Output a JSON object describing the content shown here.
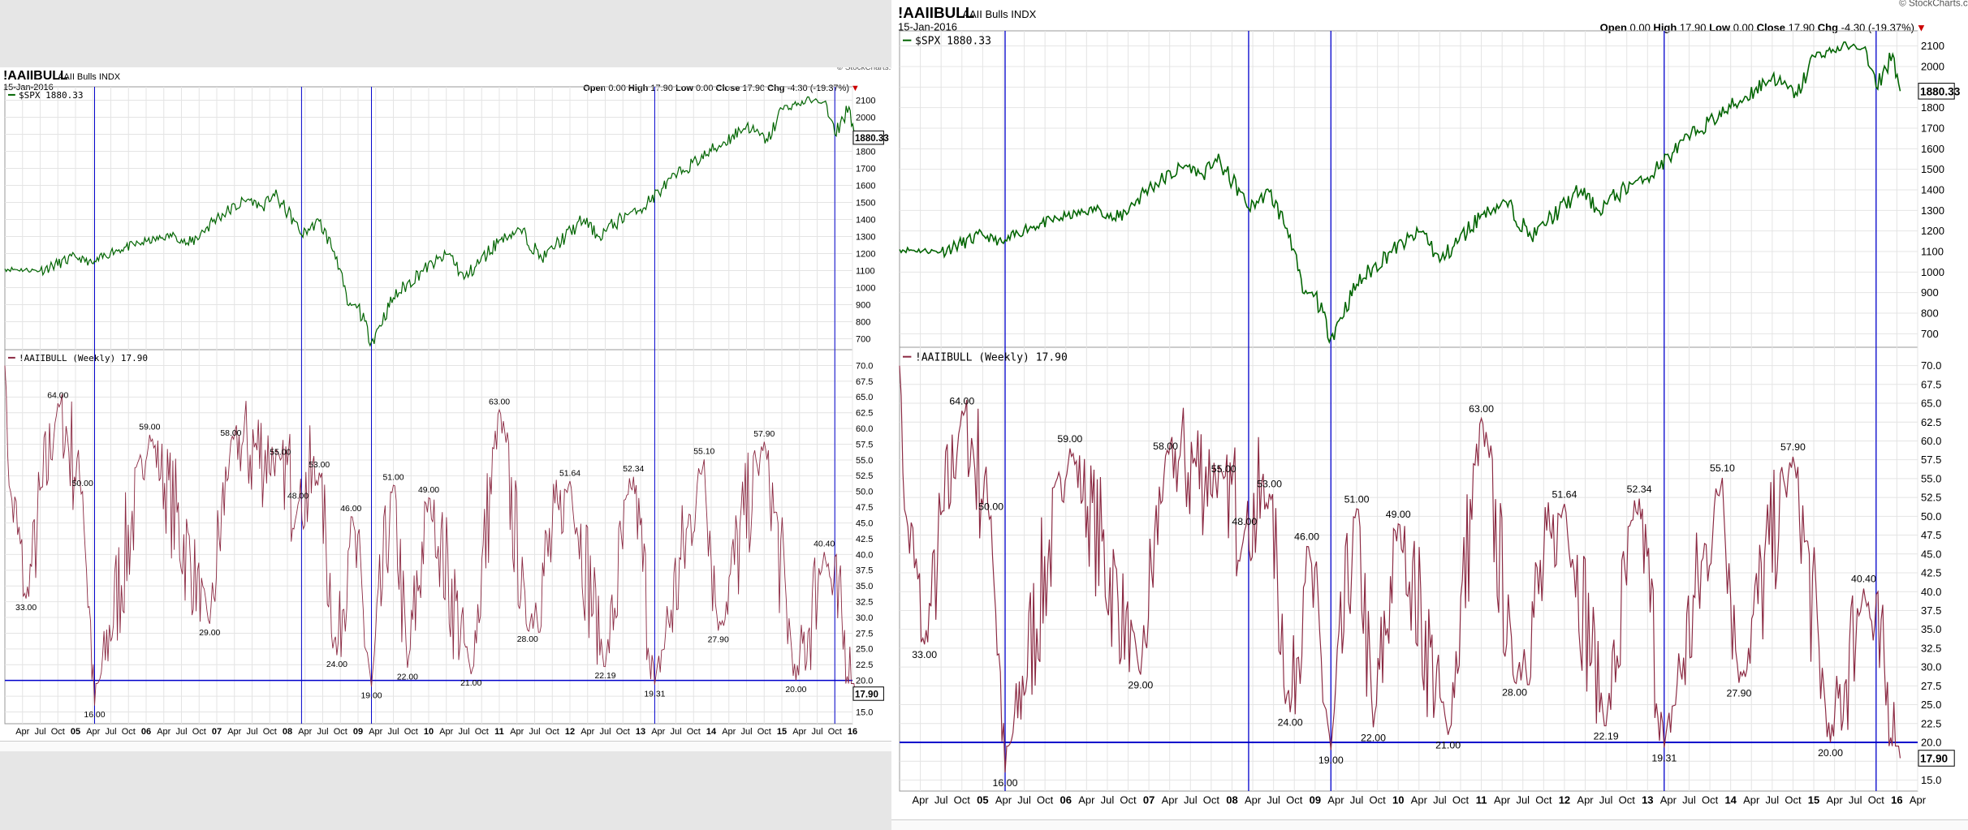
{
  "symbol": "!AAIIBULL",
  "name": "AAII Bulls",
  "exchange": "INDX",
  "date": "15-Jan-2016",
  "watermark": "© StockCharts.com",
  "ohlc": {
    "open_label": "Open",
    "open": "0.00",
    "high_label": "High",
    "high": "17.90",
    "low_label": "Low",
    "low": "0.00",
    "close_label": "Close",
    "close": "17.90",
    "chg_label": "Chg",
    "chg": "-4.30 (-19.37%)",
    "chg_marker": "▼"
  },
  "price_legend": "$SPX 1880.33",
  "price_tag": "1880.33",
  "bull_legend": "!AAIIBULL (Weekly) 17.90",
  "bull_tag": "17.90",
  "colors": {
    "price_line": "#006400",
    "bull_line": "#8b2942",
    "markers": "#0000cc",
    "down": "#cc0000"
  },
  "chart_data": [
    {
      "type": "line",
      "title": "$SPX 1880.33",
      "x_range": [
        "2004-01",
        "2016-01"
      ],
      "ylim": [
        650,
        2150
      ],
      "yticks": [
        700,
        800,
        900,
        1000,
        1100,
        1200,
        1300,
        1400,
        1500,
        1600,
        1700,
        1800,
        1900,
        2000,
        2100
      ],
      "x": [
        2004.0,
        2004.5,
        2005.0,
        2005.25,
        2005.5,
        2006.0,
        2006.4,
        2006.6,
        2007.0,
        2007.45,
        2007.65,
        2007.8,
        2008.1,
        2008.2,
        2008.45,
        2008.7,
        2008.85,
        2009.0,
        2009.19,
        2009.5,
        2009.9,
        2010.3,
        2010.5,
        2011.0,
        2011.3,
        2011.6,
        2011.8,
        2012.2,
        2012.4,
        2012.8,
        2013.0,
        2013.3,
        2013.6,
        2014.0,
        2014.5,
        2014.8,
        2015.0,
        2015.4,
        2015.6,
        2015.75,
        2015.95,
        2016.04
      ],
      "values": [
        1110,
        1100,
        1180,
        1140,
        1210,
        1270,
        1310,
        1250,
        1410,
        1520,
        1470,
        1550,
        1390,
        1310,
        1390,
        1180,
        900,
        890,
        683,
        940,
        1100,
        1200,
        1050,
        1280,
        1340,
        1170,
        1250,
        1400,
        1300,
        1430,
        1460,
        1580,
        1690,
        1800,
        1950,
        1860,
        2050,
        2100,
        2090,
        1900,
        2060,
        1880.33
      ]
    },
    {
      "type": "line",
      "title": "!AAIIBULL (Weekly) 17.90",
      "x_range": [
        "2004-01",
        "2016-01"
      ],
      "ylim": [
        13,
        72
      ],
      "yticks": [
        15.0,
        17.5,
        20.0,
        22.5,
        25.0,
        27.5,
        30.0,
        32.5,
        35.0,
        37.5,
        40.0,
        42.5,
        45.0,
        47.5,
        50.0,
        52.5,
        55.0,
        57.5,
        60.0,
        62.5,
        65.0,
        67.5,
        70.0
      ],
      "reference_line": 20.0,
      "x_tick_labels": [
        "Apr",
        "Jul",
        "Oct",
        "05",
        "Apr",
        "Jul",
        "Oct",
        "06",
        "Apr",
        "Jul",
        "Oct",
        "07",
        "Apr",
        "Jul",
        "Oct",
        "08",
        "Apr",
        "Jul",
        "Oct",
        "09",
        "Apr",
        "Jul",
        "Oct",
        "10",
        "Apr",
        "Jul",
        "Oct",
        "11",
        "Apr",
        "Jul",
        "Oct",
        "12",
        "Apr",
        "Jul",
        "Oct",
        "13",
        "Apr",
        "Jul",
        "Oct",
        "14",
        "Apr",
        "Jul",
        "Oct",
        "15",
        "Apr",
        "Jul",
        "Oct",
        "16"
      ],
      "x_tick_labels_right_extra": [
        "Apr"
      ],
      "labeled_points": [
        {
          "x": 2004.3,
          "y": 33.0,
          "label": "33.00"
        },
        {
          "x": 2004.75,
          "y": 64.0,
          "label": "64.00"
        },
        {
          "x": 2005.1,
          "y": 50.0,
          "label": "50.00"
        },
        {
          "x": 2005.27,
          "y": 16.0,
          "label": "16.00"
        },
        {
          "x": 2006.05,
          "y": 59.0,
          "label": "59.00"
        },
        {
          "x": 2006.9,
          "y": 29.0,
          "label": "29.00"
        },
        {
          "x": 2007.2,
          "y": 58.0,
          "label": "58.00"
        },
        {
          "x": 2007.9,
          "y": 55.0,
          "label": "55.00"
        },
        {
          "x": 2008.15,
          "y": 48.0,
          "label": "48.00"
        },
        {
          "x": 2008.45,
          "y": 53.0,
          "label": "53.00"
        },
        {
          "x": 2008.7,
          "y": 24.0,
          "label": "24.00"
        },
        {
          "x": 2008.9,
          "y": 46.0,
          "label": "46.00"
        },
        {
          "x": 2009.19,
          "y": 19.0,
          "label": "19.00"
        },
        {
          "x": 2009.5,
          "y": 51.0,
          "label": "51.00"
        },
        {
          "x": 2009.7,
          "y": 22.0,
          "label": "22.00"
        },
        {
          "x": 2010.0,
          "y": 49.0,
          "label": "49.00"
        },
        {
          "x": 2010.6,
          "y": 21.0,
          "label": "21.00"
        },
        {
          "x": 2011.0,
          "y": 63.0,
          "label": "63.00"
        },
        {
          "x": 2011.4,
          "y": 28.0,
          "label": "28.00"
        },
        {
          "x": 2012.0,
          "y": 51.64,
          "label": "51.64"
        },
        {
          "x": 2012.5,
          "y": 22.19,
          "label": "22.19"
        },
        {
          "x": 2012.9,
          "y": 52.34,
          "label": "52.34"
        },
        {
          "x": 2013.2,
          "y": 19.31,
          "label": "19.31"
        },
        {
          "x": 2013.9,
          "y": 55.1,
          "label": "55.10"
        },
        {
          "x": 2014.1,
          "y": 27.9,
          "label": "27.90"
        },
        {
          "x": 2014.75,
          "y": 57.9,
          "label": "57.90"
        },
        {
          "x": 2015.2,
          "y": 20.0,
          "label": "20.00"
        },
        {
          "x": 2015.6,
          "y": 40.4,
          "label": "40.40"
        },
        {
          "x": 2016.04,
          "y": 17.9,
          "label": "17.90"
        }
      ]
    }
  ],
  "vertical_markers": [
    2005.27,
    2008.2,
    2009.19,
    2013.2,
    2015.75
  ]
}
